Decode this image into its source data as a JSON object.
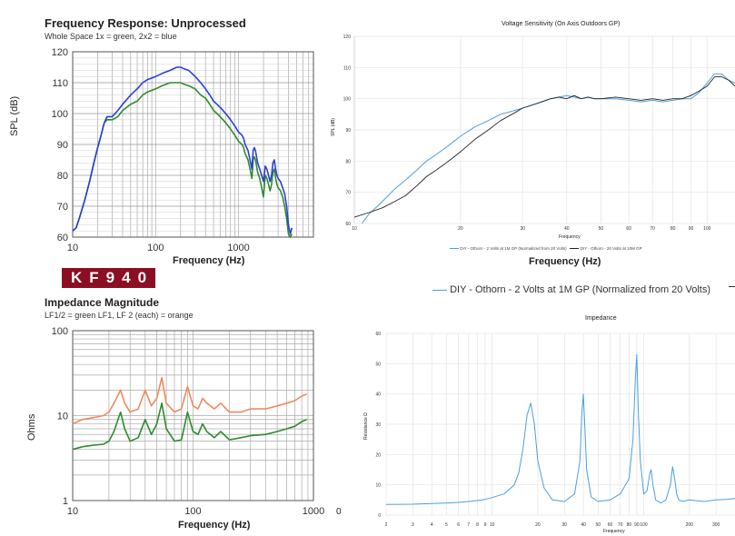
{
  "chart_data": [
    {
      "type": "line",
      "title": "Frequency  Response: Unprocessed",
      "subtitle": "Whole Space 1x = green, 2x2 = blue",
      "xlabel": "Frequency (Hz)",
      "ylabel": "SPL (dB)",
      "xscale": "log",
      "xlim": [
        10,
        8000
      ],
      "ylim": [
        60,
        120
      ],
      "x_ticks": [
        "10",
        "100",
        "1000"
      ],
      "y_ticks": [
        "60",
        "70",
        "80",
        "90",
        "100",
        "110",
        "120"
      ],
      "grid": true,
      "series": [
        {
          "color": "#2b3fd6",
          "x": [
            10,
            11,
            12,
            14,
            16,
            18,
            20,
            22,
            24,
            26,
            28,
            30,
            35,
            40,
            50,
            60,
            70,
            80,
            100,
            120,
            150,
            180,
            200,
            220,
            250,
            300,
            350,
            400,
            450,
            500,
            550,
            600,
            650,
            700,
            750,
            800,
            850,
            900,
            950,
            1000,
            1050,
            1100,
            1150,
            1200,
            1250,
            1300,
            1350,
            1400,
            1450,
            1500,
            1550,
            1600,
            1700,
            1800,
            1900,
            2000,
            2100,
            2200,
            2300,
            2400,
            2500,
            2600,
            2700,
            2800,
            2900,
            3000,
            3200,
            3400,
            3600,
            3800,
            4000,
            4200,
            4400
          ],
          "y": [
            62,
            63,
            66,
            72,
            78,
            84,
            89,
            93,
            97,
            99,
            99,
            99,
            101,
            103,
            106,
            108,
            110,
            111,
            112,
            113,
            114,
            115,
            115,
            114.5,
            114,
            112,
            110,
            108,
            106,
            104,
            103,
            102,
            101,
            100,
            99,
            98,
            97,
            96,
            95,
            94,
            93.5,
            93,
            92,
            90,
            89,
            88,
            86,
            84,
            82,
            88,
            89,
            88,
            84,
            82,
            80,
            78,
            83,
            82,
            80,
            78,
            80,
            84,
            85,
            82,
            80,
            79,
            78,
            76,
            74,
            70,
            64,
            61,
            63
          ]
        },
        {
          "color": "#2e8b2e",
          "x": [
            10,
            11,
            12,
            14,
            16,
            18,
            20,
            22,
            24,
            26,
            28,
            30,
            35,
            40,
            50,
            60,
            70,
            80,
            100,
            120,
            150,
            180,
            200,
            220,
            250,
            300,
            350,
            400,
            450,
            500,
            550,
            600,
            650,
            700,
            750,
            800,
            850,
            900,
            950,
            1000,
            1050,
            1100,
            1150,
            1200,
            1250,
            1300,
            1350,
            1400,
            1450,
            1500,
            1550,
            1600,
            1700,
            1800,
            1900,
            2000,
            2100,
            2200,
            2300,
            2400,
            2500,
            2600,
            2700,
            2800,
            2900,
            3000,
            3200,
            3400,
            3600,
            3800,
            4000,
            4200,
            4400
          ],
          "y": [
            62,
            63,
            66,
            72,
            78,
            84,
            89,
            93,
            97,
            98,
            98,
            98,
            99,
            101,
            103,
            104,
            106,
            107,
            108,
            109,
            110,
            110,
            110,
            109.5,
            109,
            108,
            106,
            105,
            103,
            101,
            100,
            99,
            98,
            97,
            96,
            95,
            94,
            93,
            92,
            91,
            90.5,
            90,
            89,
            87,
            86,
            85,
            83,
            81,
            79,
            85,
            86,
            85,
            81,
            79,
            76,
            73,
            80,
            79,
            77,
            75,
            77,
            81,
            82,
            79,
            77,
            76,
            75,
            73,
            70,
            66,
            61,
            60,
            61
          ]
        }
      ]
    },
    {
      "type": "line",
      "title": "Voltage Sensitivity (On Axis Outdoors GP)",
      "xlabel": "Frequency",
      "ylabel": "SPL (dB)",
      "xscale": "log",
      "xlim": [
        10,
        120
      ],
      "ylim": [
        60,
        120
      ],
      "x_ticks": [
        "10",
        "20",
        "30",
        "40",
        "50",
        "60",
        "70",
        "80",
        "90",
        "100"
      ],
      "y_ticks": [
        "60",
        "70",
        "80",
        "90",
        "100",
        "110",
        "120"
      ],
      "grid": true,
      "legend": "bottom",
      "series": [
        {
          "name": "DIY - Othorn - 2 Volts at 1M GP (Normalized from 20 Volts)",
          "color": "#4a9fe0",
          "x": [
            10.5,
            11,
            12,
            13,
            14,
            15,
            16,
            17,
            18,
            19,
            20,
            22,
            24,
            26,
            28,
            30,
            32,
            34,
            36,
            38,
            40,
            42,
            44,
            46,
            48,
            50,
            55,
            60,
            65,
            70,
            75,
            80,
            85,
            90,
            95,
            100,
            105,
            110,
            115,
            120
          ],
          "y": [
            60,
            63,
            67,
            71,
            74,
            77,
            80,
            82,
            84,
            86,
            88,
            91,
            93,
            95,
            96,
            97,
            98,
            99,
            100,
            100.5,
            101,
            100.5,
            100,
            100.5,
            100,
            100,
            100,
            99.5,
            99,
            99.5,
            99,
            99.5,
            100,
            100,
            102,
            105,
            108,
            108,
            106,
            105
          ]
        },
        {
          "name": "DIY - Othorn - 20 Volts at 10M GP",
          "color": "#222222",
          "x": [
            10,
            11,
            12,
            13,
            14,
            15,
            16,
            17,
            18,
            19,
            20,
            22,
            24,
            26,
            28,
            30,
            32,
            34,
            36,
            38,
            40,
            42,
            44,
            46,
            48,
            50,
            55,
            60,
            65,
            70,
            75,
            80,
            85,
            90,
            95,
            100,
            105,
            110,
            115,
            120
          ],
          "y": [
            62,
            63.5,
            65,
            67,
            69,
            72,
            75,
            77,
            79,
            81,
            83,
            87,
            90,
            93,
            95,
            97,
            98,
            99,
            100,
            100.5,
            100,
            101,
            100,
            100.5,
            100,
            100,
            100.5,
            100,
            99.5,
            100,
            99.5,
            100,
            100,
            101,
            102.5,
            104,
            107,
            107,
            106,
            104
          ]
        }
      ],
      "x_title_outside": "Frequency (Hz)",
      "legend_outside": "DIY - Othorn - 2 Volts at 1M GP (Normalized from 20 Volts)"
    },
    {
      "type": "line",
      "title": "Impedance Magnitude",
      "subtitle": "LF1/2 = green    LF1, LF 2 (each) = orange",
      "xlabel": "Frequency (Hz)",
      "ylabel": "Ohms",
      "xscale": "log",
      "yscale": "log",
      "xlim": [
        10,
        1000
      ],
      "ylim": [
        1,
        100
      ],
      "x_ticks": [
        "10",
        "100",
        "1000"
      ],
      "y_ticks": [
        "1",
        "10",
        "100"
      ],
      "grid": true,
      "series": [
        {
          "color": "#f08a5d",
          "x": [
            10,
            12,
            15,
            18,
            20,
            22,
            25,
            27,
            30,
            35,
            40,
            45,
            50,
            55,
            60,
            70,
            80,
            90,
            100,
            110,
            120,
            130,
            150,
            170,
            200,
            250,
            300,
            400,
            500,
            600,
            700,
            800,
            880
          ],
          "y": [
            8,
            9,
            9.5,
            10,
            11,
            14,
            20,
            14,
            11,
            12,
            20,
            13,
            16,
            28,
            14,
            11,
            12,
            22,
            13,
            12,
            16,
            14,
            12,
            14,
            11,
            11,
            12,
            12,
            13,
            14,
            15,
            17,
            18
          ]
        },
        {
          "color": "#2e8b2e",
          "x": [
            10,
            12,
            15,
            18,
            20,
            22,
            25,
            27,
            30,
            35,
            40,
            45,
            50,
            55,
            60,
            70,
            80,
            90,
            100,
            110,
            120,
            130,
            150,
            170,
            200,
            250,
            300,
            400,
            500,
            600,
            700,
            800,
            880
          ],
          "y": [
            4,
            4.3,
            4.5,
            4.6,
            5,
            6.5,
            11,
            7,
            5,
            5.5,
            9,
            6,
            8,
            14,
            7,
            5,
            5.2,
            11,
            6.5,
            6,
            8,
            6.5,
            5.5,
            6.5,
            5.2,
            5.5,
            5.8,
            6,
            6.5,
            7,
            7.5,
            8.5,
            9
          ]
        }
      ]
    },
    {
      "type": "line",
      "title": "Impedance",
      "xlabel": "Frequency",
      "ylabel": "Resistance Ω",
      "xscale": "log",
      "xlim": [
        2,
        400
      ],
      "ylim": [
        0,
        60
      ],
      "x_ticks": [
        "2",
        "3",
        "4",
        "5",
        "6",
        "7",
        "8",
        "9",
        "10",
        "20",
        "30",
        "40",
        "50",
        "60",
        "70",
        "80",
        "90",
        "100",
        "200",
        "300"
      ],
      "y_ticks": [
        "0",
        "10",
        "20",
        "30",
        "40",
        "50",
        "60"
      ],
      "grid": true,
      "series": [
        {
          "color": "#4a9fe0",
          "x": [
            2,
            3,
            4,
            5,
            6,
            7,
            8,
            9,
            10,
            12,
            14,
            15,
            16,
            17,
            18,
            19,
            20,
            22,
            25,
            30,
            35,
            38,
            39,
            40,
            41,
            42,
            45,
            50,
            60,
            70,
            80,
            85,
            88,
            90,
            92,
            95,
            100,
            105,
            110,
            112,
            115,
            120,
            130,
            140,
            150,
            155,
            160,
            165,
            170,
            180,
            200,
            250,
            300,
            350,
            400
          ],
          "y": [
            3.5,
            3.6,
            3.8,
            4,
            4.2,
            4.5,
            4.8,
            5.2,
            5.8,
            7,
            10,
            14,
            22,
            33,
            37,
            30,
            18,
            9,
            5,
            4.5,
            7,
            18,
            33,
            40,
            28,
            15,
            6,
            4.5,
            5,
            7,
            12,
            25,
            45,
            53,
            35,
            18,
            7,
            8,
            14,
            15,
            10,
            5,
            4,
            5,
            10,
            16,
            12,
            7,
            5,
            4.5,
            5,
            4.5,
            5,
            5.2,
            5.5
          ]
        }
      ]
    }
  ],
  "badge": {
    "text": "KF940"
  },
  "stray_label": "0"
}
